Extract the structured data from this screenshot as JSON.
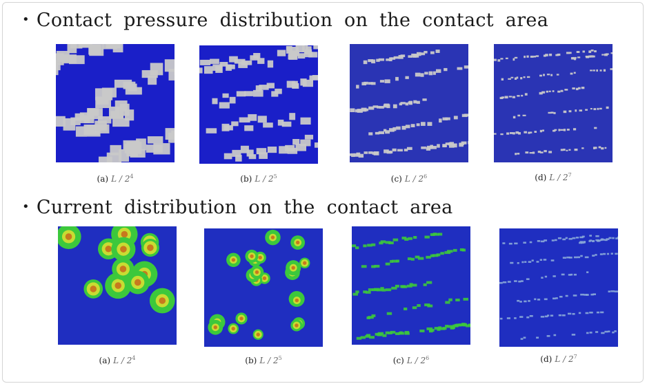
{
  "headings": {
    "pressure": "Contact pressure distribution on the contact area",
    "current": "Current distribution on the contact area",
    "bullet": "•"
  },
  "rows": [
    {
      "kind": "pressure",
      "panels": [
        {
          "label": "(a)",
          "symbol": "L / 2",
          "exp": "4"
        },
        {
          "label": "(b)",
          "symbol": "L / 2",
          "exp": "5"
        },
        {
          "label": "(c)",
          "symbol": "L / 2",
          "exp": "6"
        },
        {
          "label": "(d)",
          "symbol": "L / 2",
          "exp": "7"
        }
      ]
    },
    {
      "kind": "current",
      "panels": [
        {
          "label": "(a)",
          "symbol": "L / 2",
          "exp": "4"
        },
        {
          "label": "(b)",
          "symbol": "L / 2",
          "exp": "5"
        },
        {
          "label": "(c)",
          "symbol": "L / 2",
          "exp": "6"
        },
        {
          "label": "(d)",
          "symbol": "L / 2",
          "exp": "7"
        }
      ]
    }
  ],
  "colors": {
    "pressure_bg": "#1a1fc8",
    "pressure_spot": "#c9c9c9",
    "pressure_bg_fine": "#2a34b4",
    "current_bg": "#1f2ec0",
    "current_outer": "#3cc83c",
    "current_mid": "#c8dc32",
    "current_core": "#c8781e"
  }
}
